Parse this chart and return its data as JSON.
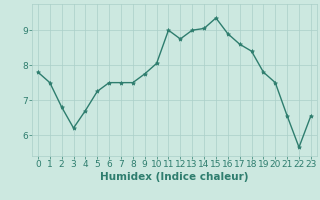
{
  "x": [
    0,
    1,
    2,
    3,
    4,
    5,
    6,
    7,
    8,
    9,
    10,
    11,
    12,
    13,
    14,
    15,
    16,
    17,
    18,
    19,
    20,
    21,
    22,
    23
  ],
  "y": [
    7.8,
    7.5,
    6.8,
    6.2,
    6.7,
    7.25,
    7.5,
    7.5,
    7.5,
    7.75,
    8.05,
    9.0,
    8.75,
    9.0,
    9.05,
    9.35,
    8.9,
    8.6,
    8.4,
    7.8,
    7.5,
    6.55,
    5.65,
    6.55
  ],
  "line_color": "#2e7d6e",
  "marker": "*",
  "marker_size": 3,
  "bg_color": "#cce8e0",
  "grid_color": "#aacfc8",
  "xlabel": "Humidex (Indice chaleur)",
  "xlim": [
    -0.5,
    23.5
  ],
  "ylim": [
    5.4,
    9.75
  ],
  "yticks": [
    6,
    7,
    8,
    9
  ],
  "xticks": [
    0,
    1,
    2,
    3,
    4,
    5,
    6,
    7,
    8,
    9,
    10,
    11,
    12,
    13,
    14,
    15,
    16,
    17,
    18,
    19,
    20,
    21,
    22,
    23
  ],
  "xlabel_fontsize": 7.5,
  "tick_fontsize": 6.5,
  "label_color": "#2e7d6e",
  "line_width": 1.0
}
